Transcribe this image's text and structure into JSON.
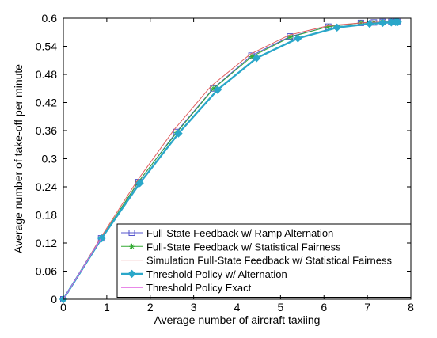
{
  "chart_data": {
    "type": "line",
    "title": "",
    "xlabel": "Average number of aircraft taxiing",
    "ylabel": "Average number of take-off per minute",
    "xlim": [
      0,
      8
    ],
    "ylim": [
      0,
      0.6
    ],
    "xticks": [
      "0",
      "1",
      "2",
      "3",
      "4",
      "5",
      "6",
      "7",
      "8"
    ],
    "yticks": [
      "0",
      "0.06",
      "0.12",
      "0.18",
      "0.24",
      "0.3",
      "0.36",
      "0.42",
      "0.48",
      "0.54",
      "0.6"
    ],
    "grid": false,
    "legend_position": "bottom-right",
    "series": [
      {
        "name": "Full-State Feedback w/ Ramp Alternation",
        "color": "#5555cc",
        "marker": "square",
        "points": [
          [
            0.0,
            0.0
          ],
          [
            0.87,
            0.13
          ],
          [
            1.73,
            0.25
          ],
          [
            2.6,
            0.357
          ],
          [
            3.45,
            0.45
          ],
          [
            4.33,
            0.52
          ],
          [
            5.22,
            0.561
          ],
          [
            6.1,
            0.582
          ],
          [
            6.85,
            0.59
          ],
          [
            7.15,
            0.591
          ],
          [
            7.35,
            0.592
          ],
          [
            7.55,
            0.592
          ],
          [
            7.65,
            0.592
          ],
          [
            7.7,
            0.592
          ]
        ]
      },
      {
        "name": "Full-State Feedback w/ Statistical Fairness",
        "color": "#33aa33",
        "marker": "star",
        "points": [
          [
            0.0,
            0.0
          ],
          [
            0.87,
            0.13
          ],
          [
            1.73,
            0.251
          ],
          [
            2.61,
            0.356
          ],
          [
            3.46,
            0.45
          ],
          [
            4.34,
            0.518
          ],
          [
            5.23,
            0.56
          ],
          [
            6.1,
            0.582
          ],
          [
            6.85,
            0.59
          ],
          [
            7.15,
            0.591
          ],
          [
            7.35,
            0.592
          ],
          [
            7.55,
            0.592
          ],
          [
            7.65,
            0.592
          ],
          [
            7.7,
            0.592
          ]
        ]
      },
      {
        "name": "Simulation Full-State Feedback w/ Statistical Fairness",
        "color": "#e06060",
        "marker": "none",
        "points": [
          [
            0.0,
            0.0
          ],
          [
            0.85,
            0.13
          ],
          [
            1.7,
            0.253
          ],
          [
            2.55,
            0.362
          ],
          [
            3.4,
            0.455
          ],
          [
            4.3,
            0.523
          ],
          [
            5.2,
            0.564
          ],
          [
            6.1,
            0.584
          ],
          [
            7.0,
            0.591
          ],
          [
            7.7,
            0.592
          ]
        ]
      },
      {
        "name": "Threshold Policy w/ Alternation",
        "color": "#2aa7c9",
        "marker": "diamond",
        "points": [
          [
            0.0,
            0.0
          ],
          [
            0.88,
            0.13
          ],
          [
            1.76,
            0.248
          ],
          [
            2.65,
            0.354
          ],
          [
            3.55,
            0.447
          ],
          [
            4.45,
            0.515
          ],
          [
            5.4,
            0.557
          ],
          [
            6.3,
            0.58
          ],
          [
            7.05,
            0.588
          ],
          [
            7.35,
            0.59
          ],
          [
            7.55,
            0.591
          ],
          [
            7.65,
            0.592
          ],
          [
            7.7,
            0.592
          ]
        ]
      },
      {
        "name": "Threshold Policy Exact",
        "color": "#e060e0",
        "marker": "none",
        "points": [
          [
            0.0,
            0.0
          ],
          [
            0.87,
            0.13
          ]
        ]
      }
    ]
  }
}
